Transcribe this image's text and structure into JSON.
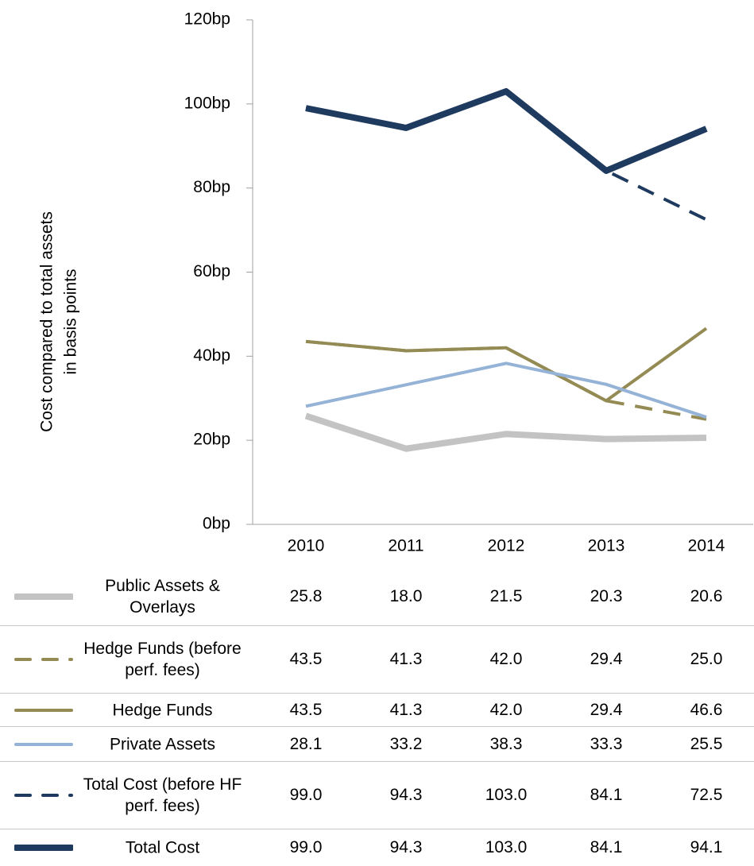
{
  "chart_data": {
    "type": "line",
    "ylabel": [
      "Cost compared to total assets",
      "in basis points"
    ],
    "categories": [
      "2010",
      "2011",
      "2012",
      "2013",
      "2014"
    ],
    "ylim": [
      0,
      120
    ],
    "yticks": [
      {
        "value": 0,
        "label": "0bp"
      },
      {
        "value": 20,
        "label": "20bp"
      },
      {
        "value": 40,
        "label": "40bp"
      },
      {
        "value": 60,
        "label": "60bp"
      },
      {
        "value": 80,
        "label": "80bp"
      },
      {
        "value": 100,
        "label": "100bp"
      },
      {
        "value": 120,
        "label": "120bp"
      }
    ],
    "grid": false,
    "series": [
      {
        "name": "Public Assets & Overlays",
        "color": "#c3c3c3",
        "line_width": 8,
        "dashed": false,
        "values": [
          25.8,
          18.0,
          21.5,
          20.3,
          20.6
        ],
        "value_labels": [
          "25.8",
          "18.0",
          "21.5",
          "20.3",
          "20.6"
        ]
      },
      {
        "name": "Hedge Funds (before perf. fees)",
        "color": "#948a54",
        "line_width": 4,
        "dashed": true,
        "values": [
          43.5,
          41.3,
          42.0,
          29.4,
          25.0
        ],
        "value_labels": [
          "43.5",
          "41.3",
          "42.0",
          "29.4",
          "25.0"
        ]
      },
      {
        "name": "Hedge Funds",
        "color": "#948a54",
        "line_width": 4,
        "dashed": false,
        "values": [
          43.5,
          41.3,
          42.0,
          29.4,
          46.6
        ],
        "value_labels": [
          "43.5",
          "41.3",
          "42.0",
          "29.4",
          "46.6"
        ]
      },
      {
        "name": "Private Assets",
        "color": "#95b3d7",
        "line_width": 4,
        "dashed": false,
        "values": [
          28.1,
          33.2,
          38.3,
          33.3,
          25.5
        ],
        "value_labels": [
          "28.1",
          "33.2",
          "38.3",
          "33.3",
          "25.5"
        ]
      },
      {
        "name": "Total Cost (before HF perf. fees)",
        "color": "#1f3a5f",
        "line_width": 4,
        "dashed": true,
        "values": [
          99.0,
          94.3,
          103.0,
          84.1,
          72.5
        ],
        "value_labels": [
          "99.0",
          "94.3",
          "103.0",
          "84.1",
          "72.5"
        ]
      },
      {
        "name": "Total Cost",
        "color": "#1f3a5f",
        "line_width": 8,
        "dashed": false,
        "values": [
          99.0,
          94.3,
          103.0,
          84.1,
          94.1
        ],
        "value_labels": [
          "99.0",
          "94.3",
          "103.0",
          "84.1",
          "94.1"
        ]
      }
    ]
  }
}
